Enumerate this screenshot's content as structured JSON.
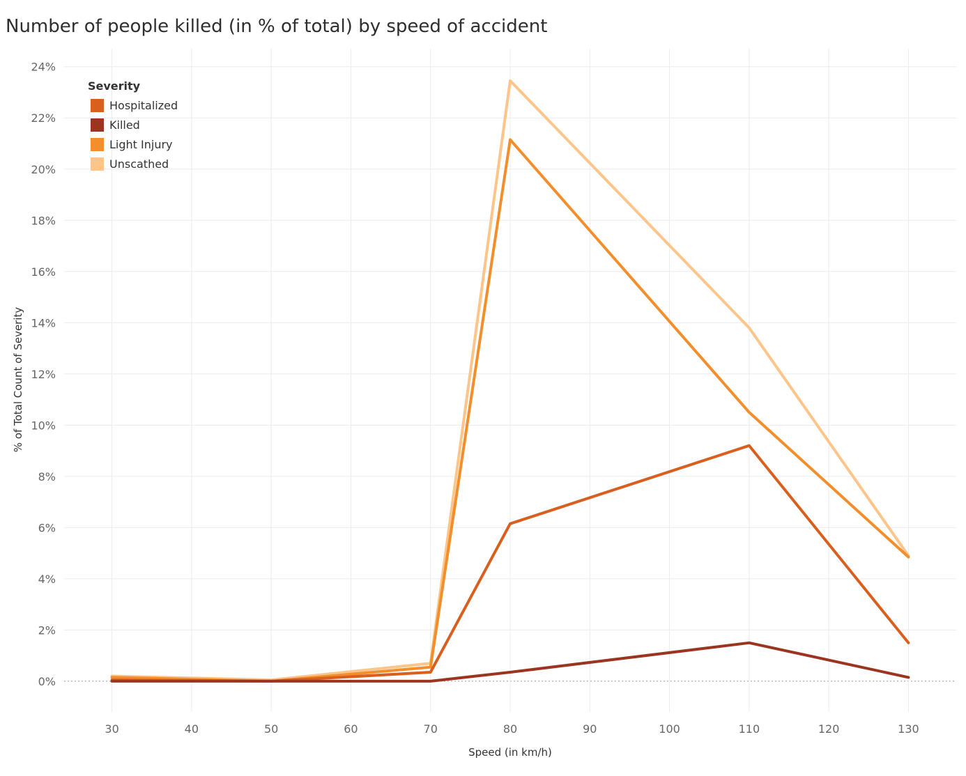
{
  "chart_data": {
    "type": "line",
    "title": "Number of people killed (in % of total) by speed of accident",
    "xlabel": "Speed (in km/h)",
    "ylabel": "% of Total Count of Severity",
    "x": [
      30,
      50,
      70,
      80,
      110,
      130
    ],
    "x_ticks": [
      30,
      40,
      50,
      60,
      70,
      80,
      90,
      100,
      110,
      120,
      130
    ],
    "y_ticks": [
      0,
      2,
      4,
      6,
      8,
      10,
      12,
      14,
      16,
      18,
      20,
      22,
      24
    ],
    "y_tick_suffix": "%",
    "xlim": [
      24,
      136
    ],
    "ylim": [
      -1.2,
      24.7
    ],
    "grid": true,
    "legend": {
      "title": "Severity",
      "position": "top-left"
    },
    "series": [
      {
        "name": "Hospitalized",
        "color": "#D95F1E",
        "values": [
          0.05,
          0.0,
          0.35,
          6.15,
          9.2,
          1.5
        ]
      },
      {
        "name": "Killed",
        "color": "#9C3520",
        "values": [
          0.0,
          0.0,
          0.0,
          0.35,
          1.5,
          0.15
        ]
      },
      {
        "name": "Light Injury",
        "color": "#F28E2B",
        "values": [
          0.15,
          0.0,
          0.55,
          21.15,
          10.5,
          4.85
        ]
      },
      {
        "name": "Unscathed",
        "color": "#FDC58A",
        "values": [
          0.2,
          0.05,
          0.7,
          23.45,
          13.8,
          4.9
        ]
      }
    ],
    "draw_order": [
      3,
      2,
      0,
      1
    ]
  }
}
